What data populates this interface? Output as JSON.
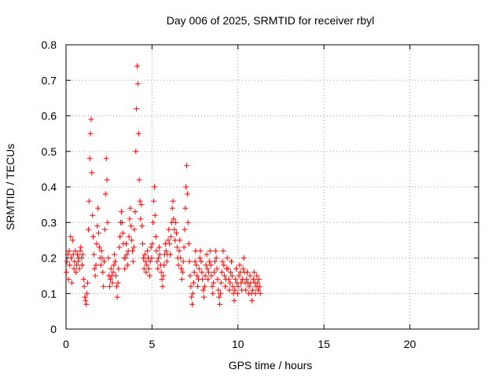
{
  "chart_data": {
    "type": "scatter",
    "title": "Day 006 of 2025, SRMTID for receiver rbyl",
    "xlabel": "GPS time / hours",
    "ylabel": "SRMTID / TECUs",
    "xlim": [
      0,
      24
    ],
    "ylim": [
      0,
      0.8
    ],
    "xticks": [
      0,
      5,
      10,
      15,
      20
    ],
    "xtick_labels": [
      "0",
      "5",
      "10",
      "15",
      "20"
    ],
    "yticks": [
      0,
      0.1,
      0.2,
      0.3,
      0.4,
      0.5,
      0.6,
      0.7,
      0.8
    ],
    "ytick_labels": [
      "0",
      "0.1",
      "0.2",
      "0.3",
      "0.4",
      "0.5",
      "0.6",
      "0.7",
      "0.8"
    ],
    "grid": true,
    "marker": "+",
    "color": "#ff0000",
    "series": [
      {
        "name": "SRMTID",
        "points": [
          [
            0.02,
            0.16
          ],
          [
            0.06,
            0.19
          ],
          [
            0.1,
            0.21
          ],
          [
            0.14,
            0.14
          ],
          [
            0.18,
            0.22
          ],
          [
            0.22,
            0.18
          ],
          [
            0.26,
            0.26
          ],
          [
            0.3,
            0.2
          ],
          [
            0.34,
            0.13
          ],
          [
            0.38,
            0.25
          ],
          [
            0.42,
            0.21
          ],
          [
            0.46,
            0.17
          ],
          [
            0.5,
            0.19
          ],
          [
            0.54,
            0.22
          ],
          [
            0.58,
            0.16
          ],
          [
            0.62,
            0.18
          ],
          [
            0.66,
            0.21
          ],
          [
            0.7,
            0.19
          ],
          [
            0.74,
            0.2
          ],
          [
            0.78,
            0.17
          ],
          [
            0.82,
            0.22
          ],
          [
            0.86,
            0.23
          ],
          [
            0.9,
            0.2
          ],
          [
            0.94,
            0.18
          ],
          [
            0.98,
            0.21
          ],
          [
            1.02,
            0.14
          ],
          [
            1.06,
            0.12
          ],
          [
            1.1,
            0.09
          ],
          [
            1.14,
            0.08
          ],
          [
            1.18,
            0.07
          ],
          [
            1.22,
            0.1
          ],
          [
            1.26,
            0.13
          ],
          [
            1.3,
            0.28
          ],
          [
            1.34,
            0.36
          ],
          [
            1.38,
            0.48
          ],
          [
            1.42,
            0.55
          ],
          [
            1.46,
            0.59
          ],
          [
            1.5,
            0.44
          ],
          [
            1.54,
            0.32
          ],
          [
            1.58,
            0.26
          ],
          [
            1.62,
            0.21
          ],
          [
            1.66,
            0.17
          ],
          [
            1.7,
            0.15
          ],
          [
            1.74,
            0.18
          ],
          [
            1.78,
            0.24
          ],
          [
            1.82,
            0.29
          ],
          [
            1.86,
            0.34
          ],
          [
            1.9,
            0.27
          ],
          [
            1.94,
            0.23
          ],
          [
            1.98,
            0.2
          ],
          [
            2.02,
            0.18
          ],
          [
            2.06,
            0.22
          ],
          [
            2.1,
            0.2
          ],
          [
            2.14,
            0.16
          ],
          [
            2.18,
            0.12
          ],
          [
            2.22,
            0.19
          ],
          [
            2.26,
            0.28
          ],
          [
            2.3,
            0.38
          ],
          [
            2.34,
            0.48
          ],
          [
            2.38,
            0.42
          ],
          [
            2.42,
            0.3
          ],
          [
            2.46,
            0.2
          ],
          [
            2.5,
            0.15
          ],
          [
            2.54,
            0.12
          ],
          [
            2.58,
            0.14
          ],
          [
            2.62,
            0.17
          ],
          [
            2.66,
            0.15
          ],
          [
            2.7,
            0.13
          ],
          [
            2.74,
            0.16
          ],
          [
            2.78,
            0.18
          ],
          [
            2.82,
            0.21
          ],
          [
            2.86,
            0.19
          ],
          [
            2.9,
            0.15
          ],
          [
            2.94,
            0.12
          ],
          [
            2.98,
            0.09
          ],
          [
            3.02,
            0.13
          ],
          [
            3.06,
            0.17
          ],
          [
            3.1,
            0.23
          ],
          [
            3.14,
            0.26
          ],
          [
            3.18,
            0.3
          ],
          [
            3.22,
            0.33
          ],
          [
            3.26,
            0.3
          ],
          [
            3.3,
            0.27
          ],
          [
            3.34,
            0.24
          ],
          [
            3.38,
            0.2
          ],
          [
            3.42,
            0.17
          ],
          [
            3.46,
            0.2
          ],
          [
            3.5,
            0.24
          ],
          [
            3.54,
            0.21
          ],
          [
            3.58,
            0.18
          ],
          [
            3.62,
            0.22
          ],
          [
            3.66,
            0.26
          ],
          [
            3.7,
            0.31
          ],
          [
            3.74,
            0.34
          ],
          [
            3.78,
            0.29
          ],
          [
            3.82,
            0.25
          ],
          [
            3.86,
            0.22
          ],
          [
            3.9,
            0.19
          ],
          [
            3.94,
            0.23
          ],
          [
            3.98,
            0.28
          ],
          [
            4.02,
            0.33
          ],
          [
            4.06,
            0.5
          ],
          [
            4.1,
            0.62
          ],
          [
            4.14,
            0.74
          ],
          [
            4.18,
            0.69
          ],
          [
            4.22,
            0.55
          ],
          [
            4.26,
            0.42
          ],
          [
            4.3,
            0.36
          ],
          [
            4.34,
            0.31
          ],
          [
            4.38,
            0.35
          ],
          [
            4.42,
            0.29
          ],
          [
            4.46,
            0.24
          ],
          [
            4.5,
            0.2
          ],
          [
            4.54,
            0.17
          ],
          [
            4.58,
            0.21
          ],
          [
            4.62,
            0.19
          ],
          [
            4.66,
            0.16
          ],
          [
            4.7,
            0.18
          ],
          [
            4.74,
            0.22
          ],
          [
            4.78,
            0.2
          ],
          [
            4.82,
            0.17
          ],
          [
            4.86,
            0.15
          ],
          [
            4.9,
            0.19
          ],
          [
            4.94,
            0.23
          ],
          [
            4.98,
            0.2
          ],
          [
            5.02,
            0.24
          ],
          [
            5.06,
            0.3
          ],
          [
            5.1,
            0.36
          ],
          [
            5.14,
            0.4
          ],
          [
            5.18,
            0.32
          ],
          [
            5.22,
            0.26
          ],
          [
            5.26,
            0.22
          ],
          [
            5.3,
            0.19
          ],
          [
            5.34,
            0.17
          ],
          [
            5.38,
            0.2
          ],
          [
            5.42,
            0.23
          ],
          [
            5.46,
            0.21
          ],
          [
            5.5,
            0.18
          ],
          [
            5.54,
            0.16
          ],
          [
            5.58,
            0.14
          ],
          [
            5.62,
            0.12
          ],
          [
            5.66,
            0.15
          ],
          [
            5.7,
            0.18
          ],
          [
            5.74,
            0.21
          ],
          [
            5.78,
            0.24
          ],
          [
            5.82,
            0.22
          ],
          [
            5.86,
            0.19
          ],
          [
            5.9,
            0.21
          ],
          [
            5.94,
            0.25
          ],
          [
            5.98,
            0.28
          ],
          [
            6.02,
            0.24
          ],
          [
            6.06,
            0.21
          ],
          [
            6.1,
            0.26
          ],
          [
            6.14,
            0.3
          ],
          [
            6.18,
            0.34
          ],
          [
            6.22,
            0.36
          ],
          [
            6.26,
            0.31
          ],
          [
            6.3,
            0.28
          ],
          [
            6.34,
            0.25
          ],
          [
            6.38,
            0.3
          ],
          [
            6.42,
            0.27
          ],
          [
            6.46,
            0.23
          ],
          [
            6.5,
            0.2
          ],
          [
            6.54,
            0.18
          ],
          [
            6.58,
            0.22
          ],
          [
            6.62,
            0.25
          ],
          [
            6.66,
            0.2
          ],
          [
            6.7,
            0.17
          ],
          [
            6.74,
            0.14
          ],
          [
            6.78,
            0.16
          ],
          [
            6.82,
            0.19
          ],
          [
            6.86,
            0.23
          ],
          [
            6.9,
            0.28
          ],
          [
            6.94,
            0.34
          ],
          [
            6.98,
            0.4
          ],
          [
            7.02,
            0.46
          ],
          [
            7.06,
            0.38
          ],
          [
            7.1,
            0.3
          ],
          [
            7.14,
            0.24
          ],
          [
            7.18,
            0.19
          ],
          [
            7.22,
            0.15
          ],
          [
            7.26,
            0.12
          ],
          [
            7.3,
            0.09
          ],
          [
            7.34,
            0.07
          ],
          [
            7.38,
            0.1
          ],
          [
            7.42,
            0.13
          ],
          [
            7.46,
            0.16
          ],
          [
            7.5,
            0.19
          ],
          [
            7.54,
            0.22
          ],
          [
            7.58,
            0.18
          ],
          [
            7.62,
            0.15
          ],
          [
            7.66,
            0.12
          ],
          [
            7.7,
            0.14
          ],
          [
            7.74,
            0.17
          ],
          [
            7.78,
            0.2
          ],
          [
            7.82,
            0.22
          ],
          [
            7.86,
            0.19
          ],
          [
            7.9,
            0.16
          ],
          [
            7.94,
            0.14
          ],
          [
            7.98,
            0.11
          ],
          [
            8.02,
            0.09
          ],
          [
            8.06,
            0.12
          ],
          [
            8.1,
            0.15
          ],
          [
            8.14,
            0.18
          ],
          [
            8.18,
            0.21
          ],
          [
            8.22,
            0.17
          ],
          [
            8.26,
            0.14
          ],
          [
            8.3,
            0.16
          ],
          [
            8.34,
            0.19
          ],
          [
            8.38,
            0.22
          ],
          [
            8.42,
            0.18
          ],
          [
            8.46,
            0.15
          ],
          [
            8.5,
            0.12
          ],
          [
            8.54,
            0.1
          ],
          [
            8.58,
            0.13
          ],
          [
            8.62,
            0.16
          ],
          [
            8.66,
            0.19
          ],
          [
            8.7,
            0.22
          ],
          [
            8.74,
            0.2
          ],
          [
            8.78,
            0.17
          ],
          [
            8.82,
            0.14
          ],
          [
            8.86,
            0.11
          ],
          [
            8.9,
            0.09
          ],
          [
            8.94,
            0.07
          ],
          [
            8.98,
            0.1
          ],
          [
            9.02,
            0.13
          ],
          [
            9.06,
            0.16
          ],
          [
            9.1,
            0.19
          ],
          [
            9.14,
            0.22
          ],
          [
            9.18,
            0.18
          ],
          [
            9.22,
            0.15
          ],
          [
            9.26,
            0.12
          ],
          [
            9.3,
            0.14
          ],
          [
            9.34,
            0.17
          ],
          [
            9.38,
            0.2
          ],
          [
            9.42,
            0.17
          ],
          [
            9.46,
            0.14
          ],
          [
            9.5,
            0.11
          ],
          [
            9.54,
            0.13
          ],
          [
            9.58,
            0.16
          ],
          [
            9.62,
            0.19
          ],
          [
            9.66,
            0.15
          ],
          [
            9.7,
            0.12
          ],
          [
            9.74,
            0.1
          ],
          [
            9.78,
            0.08
          ],
          [
            9.82,
            0.11
          ],
          [
            9.86,
            0.14
          ],
          [
            9.9,
            0.17
          ],
          [
            9.94,
            0.13
          ],
          [
            9.98,
            0.1
          ],
          [
            10.02,
            0.12
          ],
          [
            10.06,
            0.15
          ],
          [
            10.1,
            0.18
          ],
          [
            10.14,
            0.16
          ],
          [
            10.18,
            0.13
          ],
          [
            10.22,
            0.11
          ],
          [
            10.26,
            0.14
          ],
          [
            10.3,
            0.17
          ],
          [
            10.34,
            0.2
          ],
          [
            10.38,
            0.16
          ],
          [
            10.42,
            0.13
          ],
          [
            10.46,
            0.11
          ],
          [
            10.5,
            0.14
          ],
          [
            10.54,
            0.16
          ],
          [
            10.58,
            0.13
          ],
          [
            10.62,
            0.1
          ],
          [
            10.66,
            0.12
          ],
          [
            10.7,
            0.15
          ],
          [
            10.74,
            0.13
          ],
          [
            10.78,
            0.1
          ],
          [
            10.82,
            0.08
          ],
          [
            10.86,
            0.11
          ],
          [
            10.9,
            0.14
          ],
          [
            10.94,
            0.16
          ],
          [
            10.98,
            0.13
          ],
          [
            11.02,
            0.1
          ],
          [
            11.06,
            0.12
          ],
          [
            11.1,
            0.15
          ],
          [
            11.14,
            0.13
          ],
          [
            11.18,
            0.11
          ],
          [
            11.22,
            0.14
          ],
          [
            11.26,
            0.12
          ],
          [
            11.3,
            0.1
          ]
        ]
      }
    ]
  }
}
